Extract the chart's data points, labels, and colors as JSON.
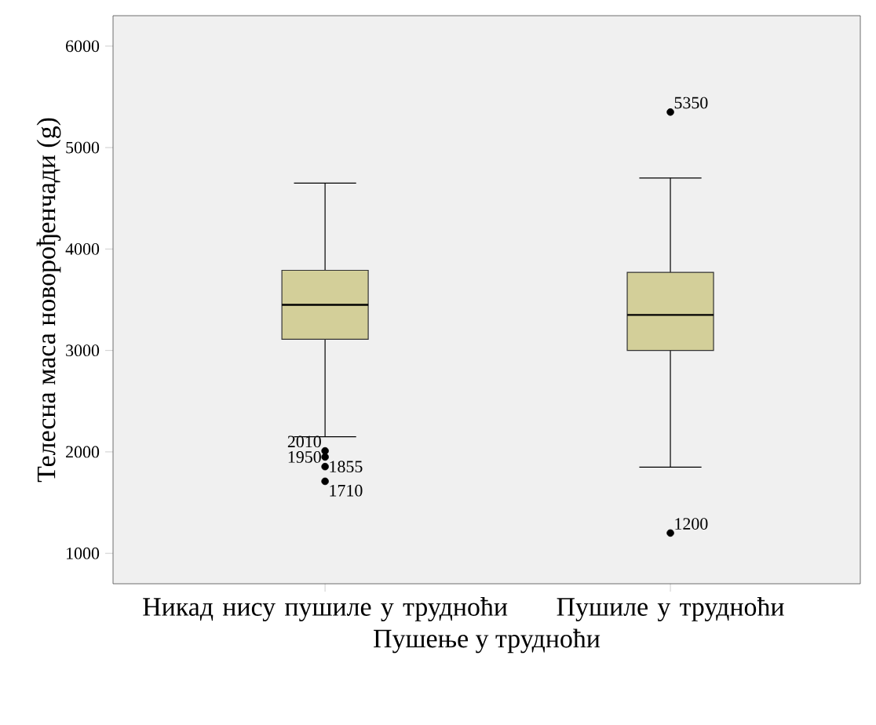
{
  "chart_data": {
    "type": "box",
    "xlabel": "Пушење у трудноћи",
    "ylabel": "Телесна маса новорођенчади (g)",
    "categories": [
      "Никад нису пушиле у трудноћи",
      "Пушиле у трудноћи"
    ],
    "series": [
      {
        "color": "#d3cf99",
        "boxes": [
          {
            "low": 2150,
            "q1": 3110,
            "median": 3450,
            "q3": 3790,
            "high": 4650,
            "outliers": [
              2010,
              1950,
              1855,
              1710
            ]
          },
          {
            "low": 1850,
            "q1": 3000,
            "median": 3350,
            "q3": 3770,
            "high": 4700,
            "outliers": [
              5350,
              1200
            ]
          }
        ]
      }
    ],
    "ylim": [
      700,
      6300
    ],
    "yticks": [
      1000,
      2000,
      3000,
      4000,
      5000,
      6000
    ],
    "marker": "circle",
    "annotations": [
      "2010",
      "1950",
      "1855",
      "1710",
      "5350",
      "1200"
    ]
  }
}
